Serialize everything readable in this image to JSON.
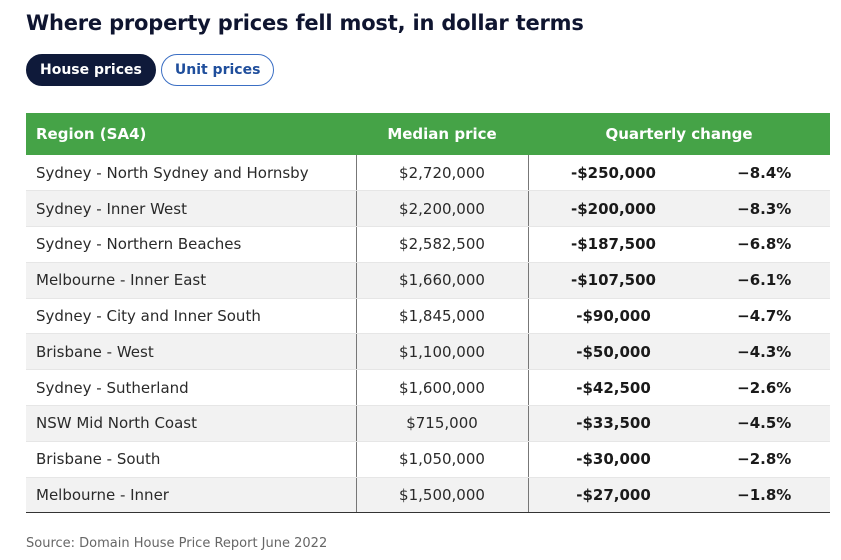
{
  "title": "Where property prices fell most, in dollar terms",
  "tabs": [
    {
      "label": "House prices",
      "active": true
    },
    {
      "label": "Unit prices",
      "active": false
    }
  ],
  "table": {
    "headers": {
      "region": "Region (SA4)",
      "median": "Median price",
      "change": "Quarterly change"
    },
    "rows": [
      {
        "region": "Sydney - North Sydney and Hornsby",
        "median": "$2,720,000",
        "dollar": "-$250,000",
        "pct": "−8.4%"
      },
      {
        "region": "Sydney - Inner West",
        "median": "$2,200,000",
        "dollar": "-$200,000",
        "pct": "−8.3%"
      },
      {
        "region": "Sydney - Northern Beaches",
        "median": "$2,582,500",
        "dollar": "-$187,500",
        "pct": "−6.8%"
      },
      {
        "region": "Melbourne - Inner East",
        "median": "$1,660,000",
        "dollar": "-$107,500",
        "pct": "−6.1%"
      },
      {
        "region": "Sydney - City and Inner South",
        "median": "$1,845,000",
        "dollar": "-$90,000",
        "pct": "−4.7%"
      },
      {
        "region": "Brisbane - West",
        "median": "$1,100,000",
        "dollar": "-$50,000",
        "pct": "−4.3%"
      },
      {
        "region": "Sydney - Sutherland",
        "median": "$1,600,000",
        "dollar": "-$42,500",
        "pct": "−2.6%"
      },
      {
        "region": "NSW Mid North Coast",
        "median": "$715,000",
        "dollar": "-$33,500",
        "pct": "−4.5%"
      },
      {
        "region": "Brisbane - South",
        "median": "$1,050,000",
        "dollar": "-$30,000",
        "pct": "−2.8%"
      },
      {
        "region": "Melbourne - Inner",
        "median": "$1,500,000",
        "dollar": "-$27,000",
        "pct": "−1.8%"
      }
    ]
  },
  "source": "Source: Domain House Price Report June 2022",
  "colors": {
    "header_green": "#45a347",
    "active_tab": "#0f1a3a",
    "inactive_tab_border": "#3b6fc4"
  }
}
